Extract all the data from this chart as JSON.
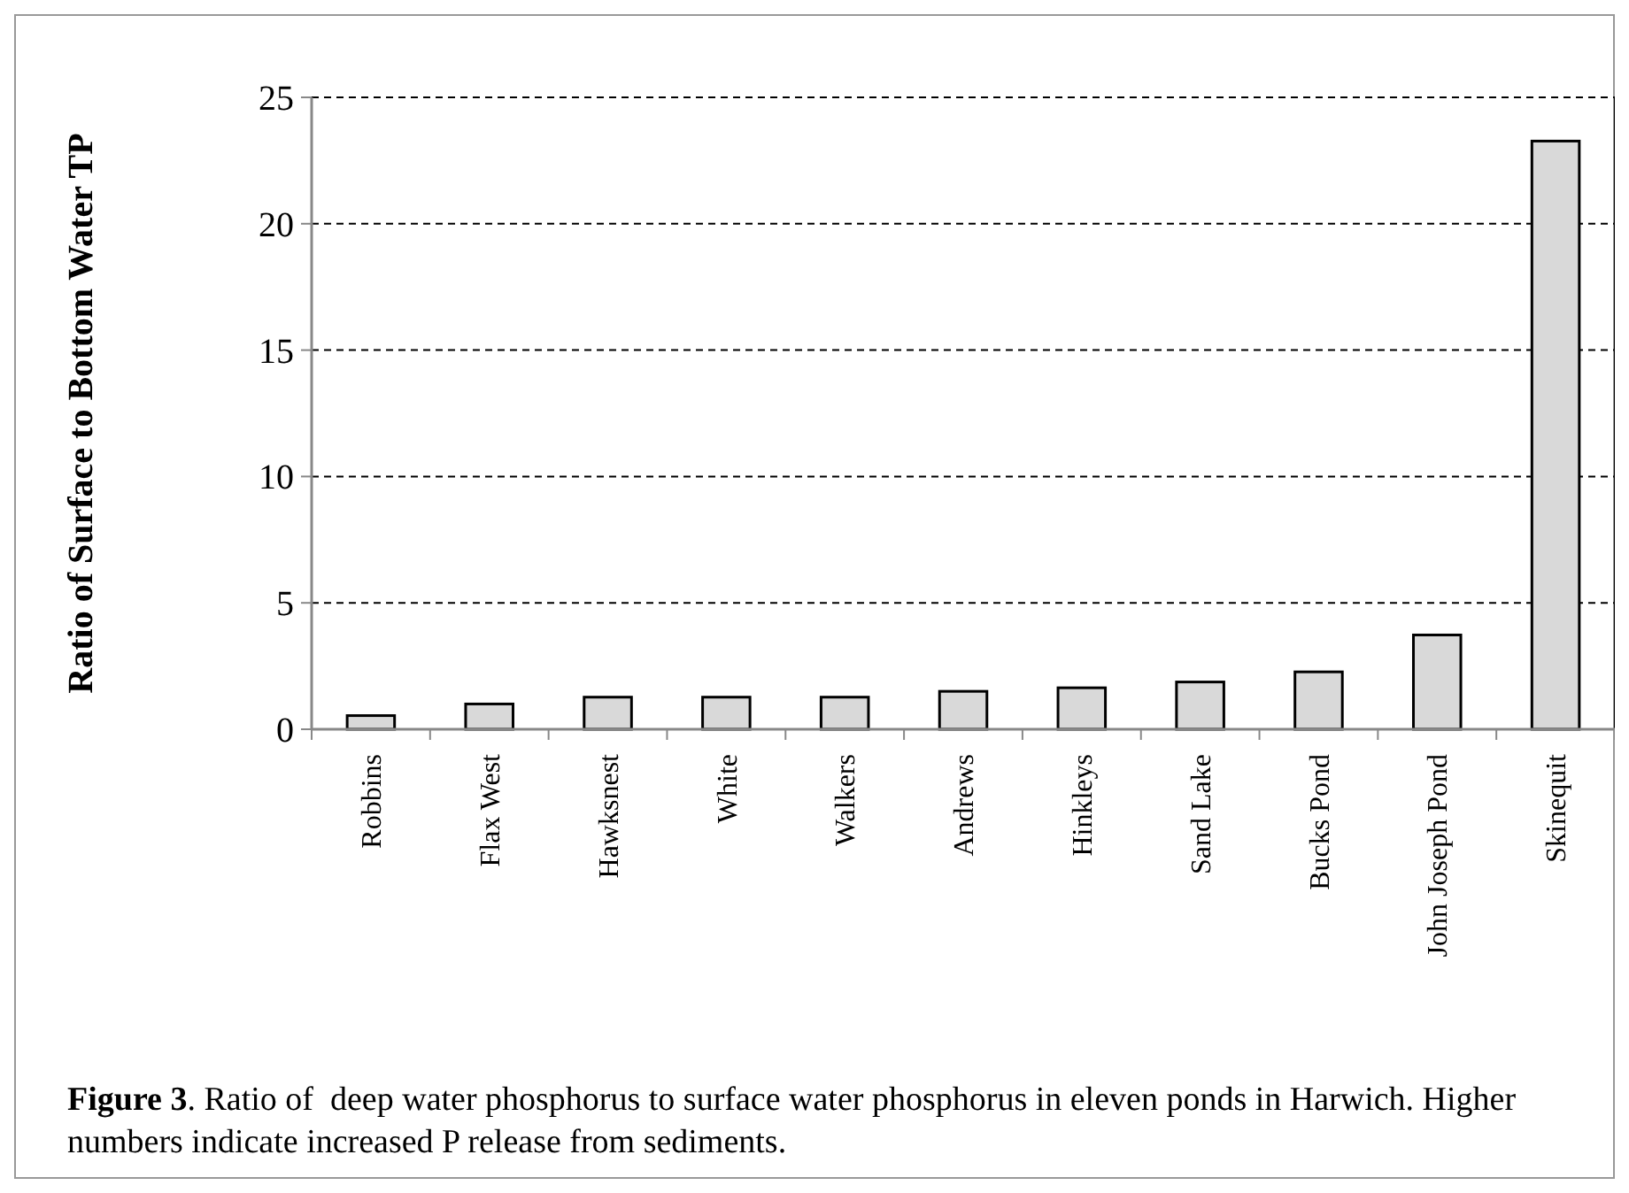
{
  "chart_data": {
    "type": "bar",
    "ylabel": "Ratio of Surface to Bottom Water TP",
    "categories": [
      "Robbins",
      "Flax West",
      "Hawksnest",
      "White",
      "Walkers",
      "Andrews",
      "Hinkleys",
      "Sand Lake",
      "Bucks Pond",
      "John Joseph Pond",
      "Skinequit"
    ],
    "values": [
      0.54,
      1.0,
      1.27,
      1.27,
      1.27,
      1.5,
      1.64,
      1.87,
      2.27,
      3.73,
      23.27
    ],
    "color": "#d9d9d9",
    "ylim": [
      0,
      25
    ],
    "yticks": [
      0,
      5,
      10,
      15,
      20,
      25
    ],
    "grid": "y",
    "annotations": [
      "Figure 3. Ratio of  deep water phosphorus to surface water phosphorus in eleven ponds in Harwich. Higher numbers indicate increased P release from sediments."
    ]
  }
}
